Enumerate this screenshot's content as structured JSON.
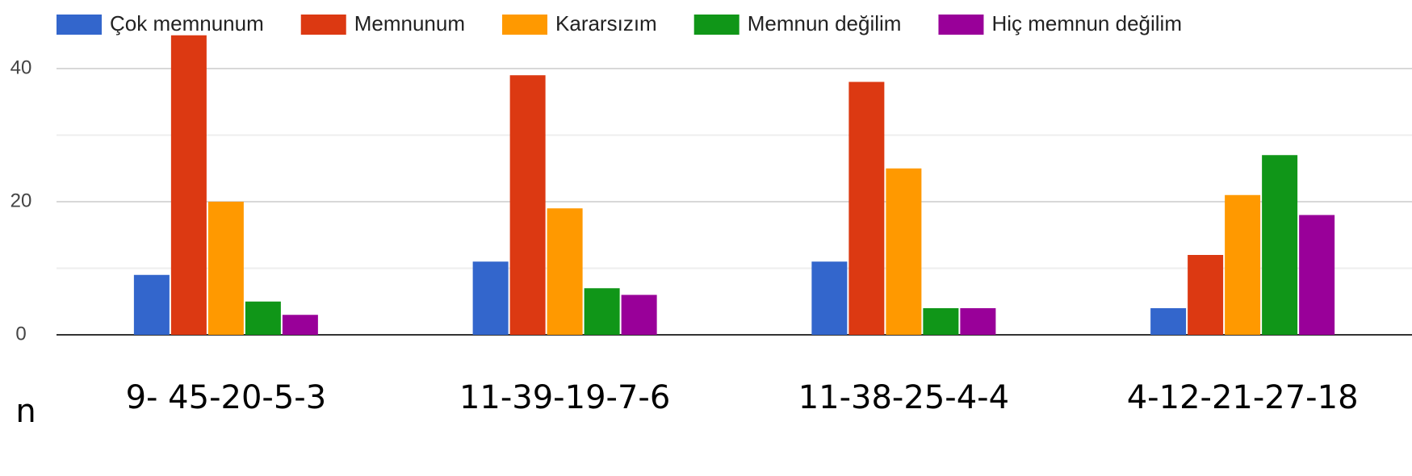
{
  "chart_data": {
    "type": "bar",
    "categories": [
      "9- 45-20-5-3",
      "11-39-19-7-6",
      "11-38-25-4-4",
      "4-12-21-27-18"
    ],
    "series": [
      {
        "name": "Çok memnunum",
        "color": "#3366cc",
        "values": [
          9,
          11,
          11,
          4
        ]
      },
      {
        "name": "Memnunum",
        "color": "#dc3912",
        "values": [
          45,
          39,
          38,
          12
        ]
      },
      {
        "name": "Kararsızım",
        "color": "#ff9900",
        "values": [
          20,
          19,
          25,
          21
        ]
      },
      {
        "name": "Memnun değilim",
        "color": "#109618",
        "values": [
          5,
          7,
          4,
          27
        ]
      },
      {
        "name": "Hiç memnun değilim",
        "color": "#990099",
        "values": [
          3,
          6,
          4,
          18
        ]
      }
    ],
    "ylim": [
      0,
      50
    ],
    "yticks": [
      0,
      20,
      40
    ],
    "minor_yticks": [
      10,
      30
    ],
    "grid": true,
    "legend": "top",
    "annotation": "n"
  }
}
